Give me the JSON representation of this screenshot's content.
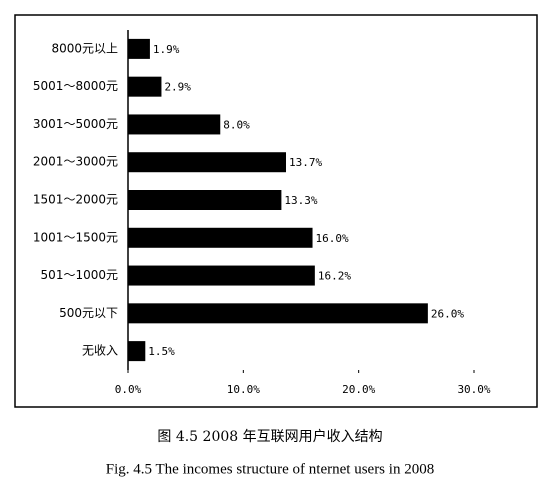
{
  "chart_data": {
    "type": "bar",
    "orientation": "horizontal",
    "categories": [
      "8000元以上",
      "5001～8000元",
      "3001～5000元",
      "2001～3000元",
      "1501～2000元",
      "1001～1500元",
      "501～1000元",
      "500元以下",
      "无收入"
    ],
    "values": [
      1.9,
      2.9,
      8.0,
      13.7,
      13.3,
      16.0,
      16.2,
      26.0,
      1.5
    ],
    "value_labels": [
      "1.9%",
      "2.9%",
      "8.0%",
      "13.7%",
      "13.3%",
      "16.0%",
      "16.2%",
      "26.0%",
      "1.5%"
    ],
    "color": "#000000",
    "xlim": [
      0,
      30
    ],
    "xticks": [
      {
        "value": 0,
        "label": "0.0%"
      },
      {
        "value": 10,
        "label": "10.0%"
      },
      {
        "value": 20,
        "label": "20.0%"
      },
      {
        "value": 30,
        "label": "30.0%"
      }
    ],
    "grid": false,
    "caption_cn": "图 4.5  2008 年互联网用户收入结构",
    "caption_en": "Fig. 4.5 The incomes structure of nternet users in 2008"
  }
}
